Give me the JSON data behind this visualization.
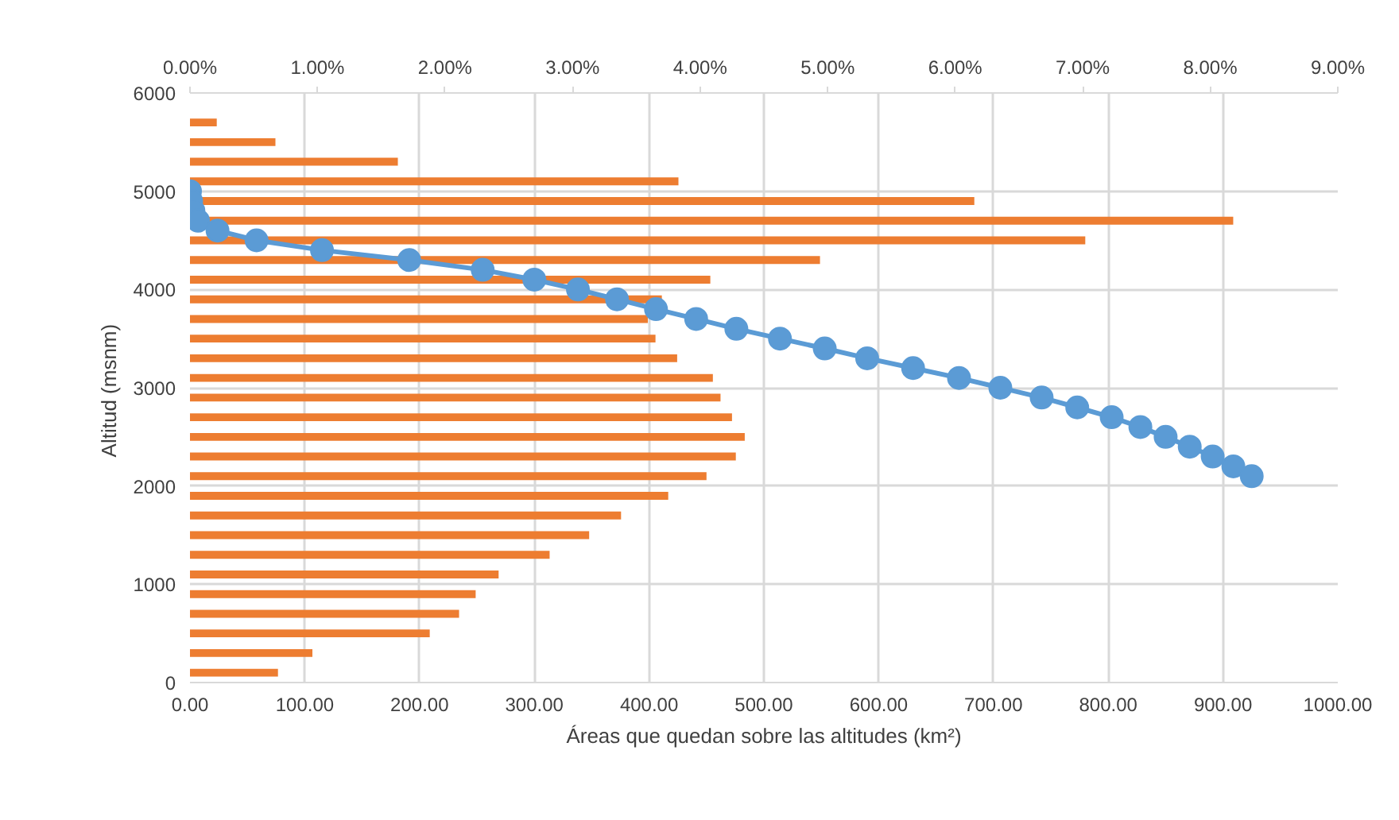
{
  "chart_data": {
    "type": "bar",
    "orientation": "horizontal",
    "xlabel": "Áreas que quedan sobre las altitudes (km²)",
    "ylabel": "Altitud  (msnm)",
    "xlim": [
      0,
      1000
    ],
    "xticks": [
      {
        "value": 0,
        "label": "0.00"
      },
      {
        "value": 100,
        "label": "100.00"
      },
      {
        "value": 200,
        "label": "200.00"
      },
      {
        "value": 300,
        "label": "300.00"
      },
      {
        "value": 400,
        "label": "400.00"
      },
      {
        "value": 500,
        "label": "500.00"
      },
      {
        "value": 600,
        "label": "600.00"
      },
      {
        "value": 700,
        "label": "700.00"
      },
      {
        "value": 800,
        "label": "800.00"
      },
      {
        "value": 900,
        "label": "900.00"
      },
      {
        "value": 1000,
        "label": "1000.00"
      }
    ],
    "x2lim": [
      0,
      9
    ],
    "x2ticks": [
      {
        "value": 0,
        "label": "0.00%"
      },
      {
        "value": 1,
        "label": "1.00%"
      },
      {
        "value": 2,
        "label": "2.00%"
      },
      {
        "value": 3,
        "label": "3.00%"
      },
      {
        "value": 4,
        "label": "4.00%"
      },
      {
        "value": 5,
        "label": "5.00%"
      },
      {
        "value": 6,
        "label": "6.00%"
      },
      {
        "value": 7,
        "label": "7.00%"
      },
      {
        "value": 8,
        "label": "8.00%"
      },
      {
        "value": 9,
        "label": "9.00%"
      }
    ],
    "ylim": [
      0,
      6000
    ],
    "yticks": [
      0,
      1000,
      2000,
      3000,
      4000,
      5000,
      6000
    ],
    "grid": true,
    "series": [
      {
        "axis": "x2",
        "color": "#ed7d31",
        "x": [
          100,
          300,
          500,
          700,
          900,
          1100,
          1300,
          1500,
          1700,
          1900,
          2100,
          2300,
          2500,
          2700,
          2900,
          3100,
          3300,
          3500,
          3700,
          3900,
          4100,
          4300,
          4500,
          4700,
          4900,
          5100,
          5300,
          5500,
          5700
        ],
        "values": [
          0.69,
          0.96,
          1.88,
          2.11,
          2.24,
          2.42,
          2.82,
          3.13,
          3.38,
          3.75,
          4.05,
          4.28,
          4.35,
          4.25,
          4.16,
          4.1,
          3.82,
          3.65,
          3.59,
          3.7,
          4.08,
          4.94,
          7.02,
          8.18,
          6.15,
          3.83,
          1.63,
          0.67,
          0.21
        ]
      },
      {
        "type": "line",
        "color": "#5b9bd5",
        "marker": "circle",
        "line_style": "solid",
        "x": [
          5000,
          4900,
          4800,
          4700,
          4600,
          4500,
          4400,
          4300,
          4200,
          4100,
          4000,
          3900,
          3800,
          3700,
          3600,
          3500,
          3400,
          3300,
          3200,
          3100,
          3000,
          2900,
          2800,
          2700,
          2600,
          2500,
          2400,
          2300,
          2200,
          2100
        ],
        "values": [
          0,
          1,
          3,
          7,
          24,
          58,
          115,
          191,
          255,
          300,
          338,
          372,
          406,
          441,
          476,
          514,
          553,
          590,
          630,
          670,
          706,
          742,
          773,
          803,
          828,
          850,
          871,
          891,
          909,
          925
        ]
      }
    ]
  }
}
